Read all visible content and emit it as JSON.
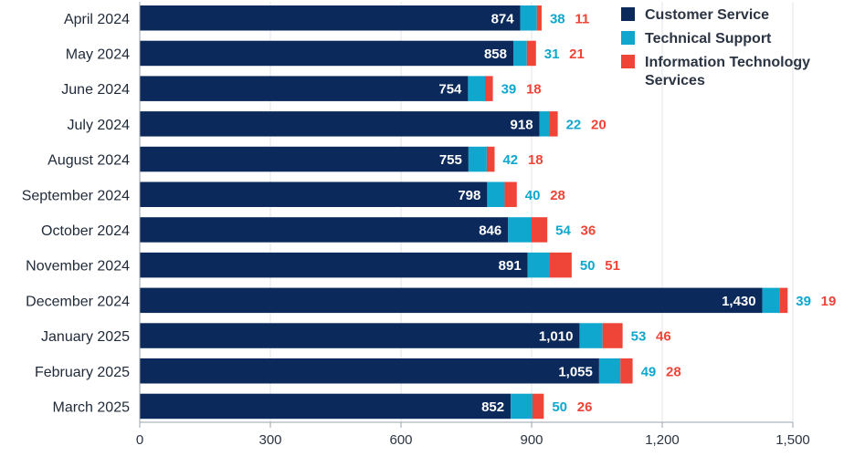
{
  "chart_data": {
    "type": "bar",
    "orientation": "horizontal",
    "stacked": true,
    "categories": [
      "April 2024",
      "May 2024",
      "June 2024",
      "July 2024",
      "August 2024",
      "September 2024",
      "October 2024",
      "November 2024",
      "December 2024",
      "January 2025",
      "February 2025",
      "March 2025"
    ],
    "series": [
      {
        "name": "Customer Service",
        "color": "#0b2a5b",
        "values": [
          874,
          858,
          754,
          918,
          755,
          798,
          846,
          891,
          1430,
          1010,
          1055,
          852
        ],
        "labels": [
          "874",
          "858",
          "754",
          "918",
          "755",
          "798",
          "846",
          "891",
          "1,430",
          "1,010",
          "1,055",
          "852"
        ]
      },
      {
        "name": "Technical Support",
        "color": "#10a7cf",
        "values": [
          38,
          31,
          39,
          22,
          42,
          40,
          54,
          50,
          39,
          53,
          49,
          50
        ],
        "labels": [
          "38",
          "31",
          "39",
          "22",
          "42",
          "40",
          "54",
          "50",
          "39",
          "53",
          "49",
          "50"
        ]
      },
      {
        "name": "Information Technology Services",
        "color": "#ef4438",
        "values": [
          11,
          21,
          18,
          20,
          18,
          28,
          36,
          51,
          19,
          46,
          28,
          26
        ],
        "labels": [
          "11",
          "21",
          "18",
          "20",
          "18",
          "28",
          "36",
          "51",
          "19",
          "46",
          "28",
          "26"
        ]
      }
    ],
    "xlim": [
      0,
      1500
    ],
    "xticks": [
      0,
      300,
      600,
      900,
      1200,
      1500
    ],
    "xtick_labels": [
      "0",
      "300",
      "600",
      "900",
      "1,200",
      "1,500"
    ],
    "grid": true,
    "legend_position": "top-right",
    "title": "",
    "xlabel": "",
    "ylabel": ""
  }
}
